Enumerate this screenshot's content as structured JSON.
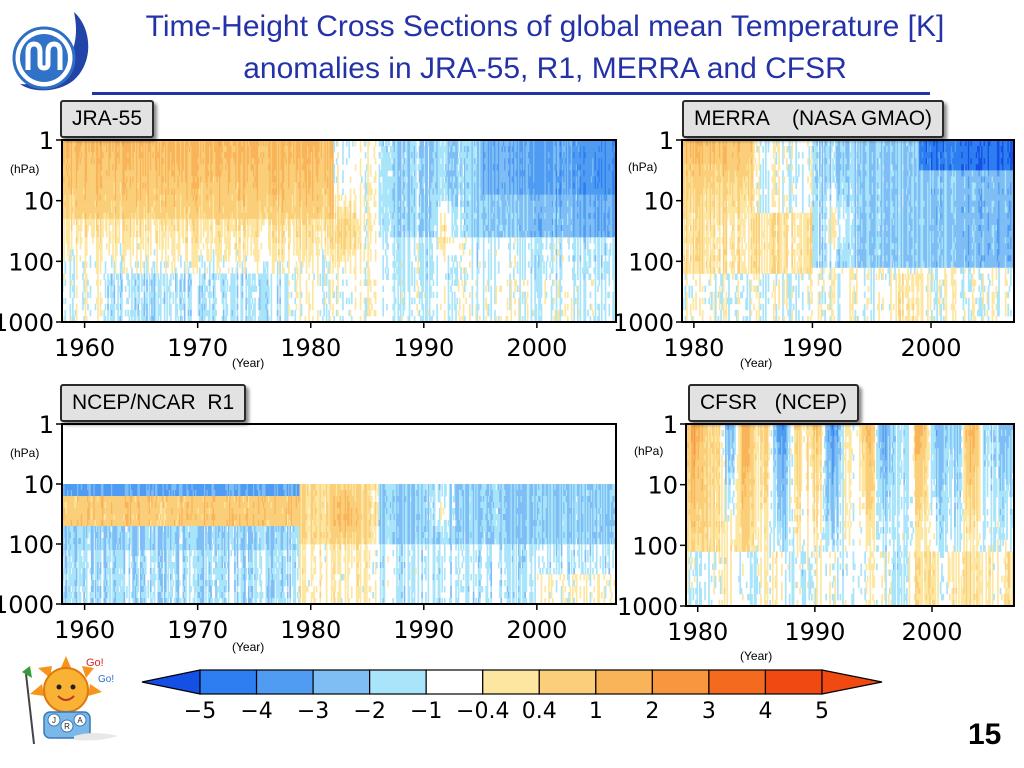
{
  "title_line1": "Time-Height Cross Sections of global mean Temperature [K]",
  "title_line2": "anomalies in JRA-55, R1, MERRA and CFSR",
  "slide_number": "15",
  "mascot": {
    "go_top": "Go!",
    "go_bottom": "Go!",
    "letters": [
      "J",
      "R",
      "A"
    ]
  },
  "colors": {
    "title": "#2432a8",
    "scale": [
      "#1450e6",
      "#2d7ef0",
      "#4f9cf2",
      "#7fbdf5",
      "#a8e4fa",
      "#ffffff",
      "#fde6a0",
      "#fbcf7a",
      "#f9b45a",
      "#f7963e",
      "#f46a1e",
      "#f04a12"
    ]
  },
  "chart_data": [
    {
      "type": "heatmap",
      "label": "JRA-55",
      "y_unit": "(hPa)",
      "x_unit": "(Year)",
      "xlim": [
        1958,
        2007
      ],
      "x_ticks": [
        1960,
        1970,
        1980,
        1990,
        2000
      ],
      "ylim": [
        1000,
        1
      ],
      "y_scale": "log",
      "y_ticks": [
        "1",
        "10",
        "100",
        "1000"
      ],
      "pattern": "warm anomalies (+0.4 to +2 K) from 1 to 100 hPa before the early 1980s; cool anomalies (-0.4 to -3 K) above 10 hPa after 1990; weak signals below 100 hPa"
    },
    {
      "type": "heatmap",
      "label": "MERRA    (NASA GMAO)",
      "y_unit": "(hPa)",
      "x_unit": "(Year)",
      "xlim": [
        1979,
        2007
      ],
      "x_ticks": [
        1980,
        1990,
        2000
      ],
      "ylim": [
        1000,
        1
      ],
      "y_scale": "log",
      "y_ticks": [
        "1",
        "10",
        "100",
        "1000"
      ],
      "pattern": "warm anomalies near 1-10 hPa around 1980-1984; cooling above 100 hPa after 1992, strongest near 1 hPa after 2000"
    },
    {
      "type": "heatmap",
      "label": "NCEP/NCAR  R1",
      "y_unit": "(hPa)",
      "x_unit": "(Year)",
      "xlim": [
        1958,
        2007
      ],
      "x_ticks": [
        1960,
        1970,
        1980,
        1990,
        2000
      ],
      "ylim": [
        1000,
        1
      ],
      "y_scale": "log",
      "y_ticks": [
        "1",
        "10",
        "100",
        "1000"
      ],
      "top_level_hpa": 10,
      "pattern": "data only below 10 hPa; cold band near 10 hPa and warm band 15-50 hPa before 1979; cool anomalies after 1990"
    },
    {
      "type": "heatmap",
      "label": "CFSR   (NCEP)",
      "y_unit": "(hPa)",
      "x_unit": "(Year)",
      "xlim": [
        1979,
        2007
      ],
      "x_ticks": [
        1980,
        1990,
        2000
      ],
      "ylim": [
        1000,
        1
      ],
      "y_scale": "log",
      "y_ticks": [
        "1",
        "10",
        "100",
        "1000"
      ],
      "pattern": "alternating vertical warm and cool stripes above 100 hPa tied to satellite transitions; weak signals below 100 hPa"
    }
  ],
  "colorbar": {
    "labels": [
      "−5",
      "−4",
      "−3",
      "−2",
      "−1",
      "−0.4",
      "0.4",
      "1",
      "2",
      "3",
      "4",
      "5"
    ]
  }
}
